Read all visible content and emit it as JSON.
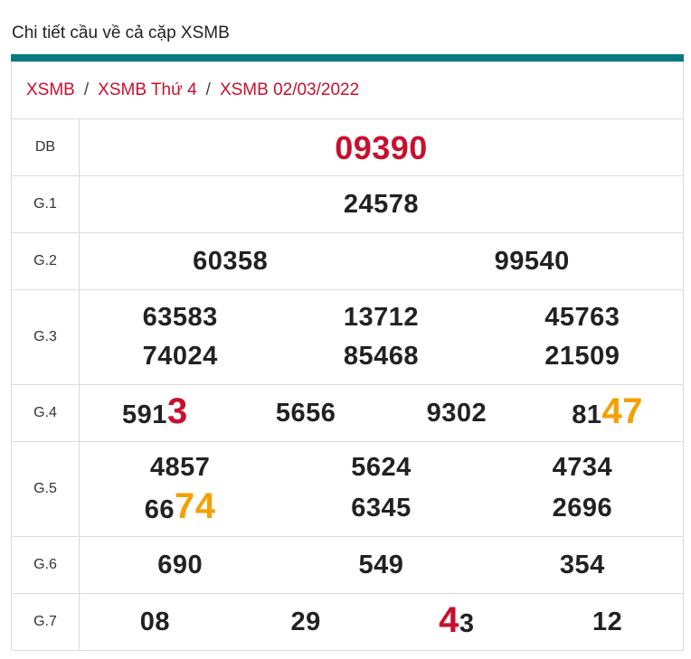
{
  "title": "Chi tiết cầu về cả cặp XSMB",
  "breadcrumb": [
    "XSMB",
    "XSMB Thứ 4",
    "XSMB 02/03/2022"
  ],
  "breadcrumb_separator": "/",
  "colors": {
    "accent": "#087a80",
    "red": "#c8102e",
    "orange": "#f5a000",
    "text": "#222222"
  },
  "rows": [
    {
      "label": "DB",
      "cols": 1,
      "height": 63,
      "numbers": [
        {
          "parts": [
            {
              "text": "09390",
              "color": "red"
            }
          ]
        }
      ]
    },
    {
      "label": "G.1",
      "cols": 1,
      "height": 63,
      "numbers": [
        {
          "parts": [
            {
              "text": "24578"
            }
          ]
        }
      ]
    },
    {
      "label": "G.2",
      "cols": 2,
      "height": 63,
      "numbers": [
        {
          "parts": [
            {
              "text": "60358"
            }
          ]
        },
        {
          "parts": [
            {
              "text": "99540"
            }
          ]
        }
      ]
    },
    {
      "label": "G.3",
      "cols": 3,
      "height": 105,
      "numbers": [
        {
          "parts": [
            {
              "text": "63583"
            }
          ]
        },
        {
          "parts": [
            {
              "text": "13712"
            }
          ]
        },
        {
          "parts": [
            {
              "text": "45763"
            }
          ]
        },
        {
          "parts": [
            {
              "text": "74024"
            }
          ]
        },
        {
          "parts": [
            {
              "text": "85468"
            }
          ]
        },
        {
          "parts": [
            {
              "text": "21509"
            }
          ]
        }
      ]
    },
    {
      "label": "G.4",
      "cols": 4,
      "height": 63,
      "numbers": [
        {
          "parts": [
            {
              "text": "591"
            },
            {
              "text": "3",
              "color": "red",
              "big": true
            }
          ]
        },
        {
          "parts": [
            {
              "text": "5656"
            }
          ]
        },
        {
          "parts": [
            {
              "text": "9302"
            }
          ]
        },
        {
          "parts": [
            {
              "text": "81"
            },
            {
              "text": "47",
              "color": "orange",
              "big": true
            }
          ]
        }
      ]
    },
    {
      "label": "G.5",
      "cols": 3,
      "height": 105,
      "numbers": [
        {
          "parts": [
            {
              "text": "4857"
            }
          ]
        },
        {
          "parts": [
            {
              "text": "5624"
            }
          ]
        },
        {
          "parts": [
            {
              "text": "4734"
            }
          ]
        },
        {
          "parts": [
            {
              "text": "66"
            },
            {
              "text": "74",
              "color": "orange",
              "big": true
            }
          ]
        },
        {
          "parts": [
            {
              "text": "6345"
            }
          ]
        },
        {
          "parts": [
            {
              "text": "2696"
            }
          ]
        }
      ]
    },
    {
      "label": "G.6",
      "cols": 3,
      "height": 63,
      "numbers": [
        {
          "parts": [
            {
              "text": "690"
            }
          ]
        },
        {
          "parts": [
            {
              "text": "549"
            }
          ]
        },
        {
          "parts": [
            {
              "text": "354"
            }
          ]
        }
      ]
    },
    {
      "label": "G.7",
      "cols": 4,
      "height": 63,
      "numbers": [
        {
          "parts": [
            {
              "text": "08"
            }
          ]
        },
        {
          "parts": [
            {
              "text": "29"
            }
          ]
        },
        {
          "parts": [
            {
              "text": "4",
              "color": "red",
              "big": true
            },
            {
              "text": "3"
            }
          ]
        },
        {
          "parts": [
            {
              "text": "12"
            }
          ]
        }
      ]
    }
  ]
}
